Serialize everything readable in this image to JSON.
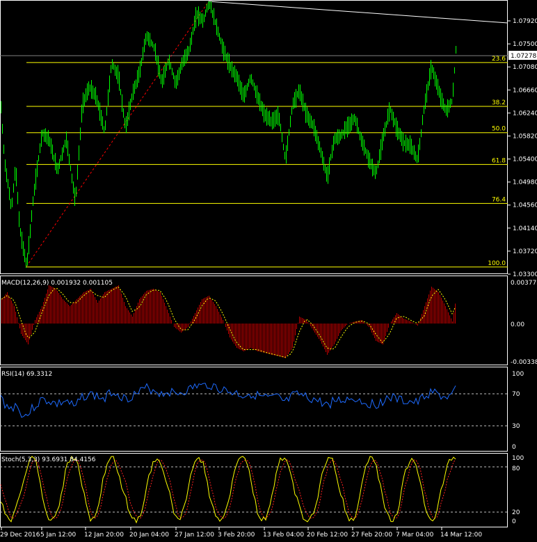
{
  "colors": {
    "background": "#000000",
    "axis": "#ffffff",
    "candle": "#00ff00",
    "fibo": "#ffff00",
    "fibo_base": "#ff0000",
    "trendline": "#ffffff",
    "macd_hist": "#c00000",
    "macd_signal": "#ffff00",
    "rsi_line": "#1e6bff",
    "stoch_main": "#ffff00",
    "stoch_signal": "#ff2020",
    "level_dash": "#c0c0c0"
  },
  "price_panel": {
    "y_ticks": [
      "1.07920",
      "1.07500",
      "1.07080",
      "1.06660",
      "1.06240",
      "1.05820",
      "1.05400",
      "1.04980",
      "1.04560",
      "1.04140",
      "1.03720",
      "1.03300"
    ],
    "current_price": "1.07278",
    "fibo_levels": [
      {
        "label": "23.6",
        "value": 1.0716
      },
      {
        "label": "38.2",
        "value": 1.0636
      },
      {
        "label": "50.0",
        "value": 1.0588
      },
      {
        "label": "61.8",
        "value": 1.053
      },
      {
        "label": "76.4",
        "value": 1.0459
      },
      {
        "label": "100.0",
        "value": 1.0343
      }
    ]
  },
  "macd_panel": {
    "title": "MACD(12,26,9) 0.001932 0.001105",
    "y_ticks": [
      "0.003775",
      "0.00",
      "-0.003384"
    ]
  },
  "rsi_panel": {
    "title": "RSI(14) 69.3312",
    "y_ticks": [
      "100",
      "70",
      "30",
      "0"
    ]
  },
  "stoch_panel": {
    "title": "Stoch(5,3,3) 93.6931 84.4156",
    "y_ticks": [
      "100",
      "80",
      "20",
      "0"
    ]
  },
  "x_axis": {
    "labels": [
      "29 Dec 2016",
      "5 Jan 12:00",
      "12 Jan 20:00",
      "20 Jan 04:00",
      "27 Jan 12:00",
      "3 Feb 20:00",
      "13 Feb 04:00",
      "20 Feb 12:00",
      "27 Feb 20:00",
      "7 Mar 04:00",
      "14 Mar 12:00"
    ]
  }
}
